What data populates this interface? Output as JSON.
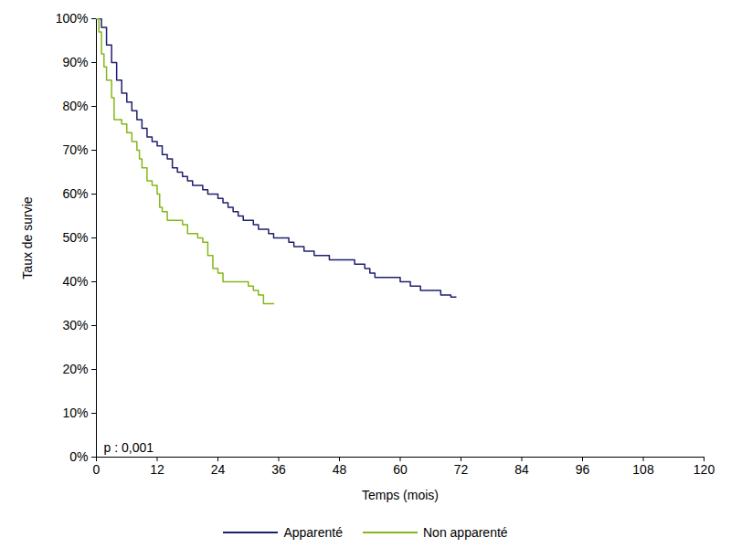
{
  "chart_data": {
    "type": "line",
    "line_style": "step",
    "xlabel": "Temps (mois)",
    "ylabel": "Taux de survie",
    "xlim": [
      0,
      120
    ],
    "xticks": [
      0,
      12,
      24,
      36,
      48,
      60,
      72,
      84,
      96,
      108,
      120
    ],
    "ylim": [
      0,
      100
    ],
    "yticks": [
      {
        "value": 0,
        "label": "0%"
      },
      {
        "value": 10,
        "label": "10%"
      },
      {
        "value": 20,
        "label": "20%"
      },
      {
        "value": 30,
        "label": "30%"
      },
      {
        "value": 40,
        "label": "40%"
      },
      {
        "value": 50,
        "label": "50%"
      },
      {
        "value": 60,
        "label": "60%"
      },
      {
        "value": 70,
        "label": "70%"
      },
      {
        "value": 80,
        "label": "80%"
      },
      {
        "value": 90,
        "label": "90%"
      },
      {
        "value": 100,
        "label": "100%"
      }
    ],
    "grid": false,
    "legend": "bottom",
    "annotations": [
      {
        "text": "p : 0,001"
      }
    ],
    "series": [
      {
        "name": "Apparenté",
        "color": "#1f1f6e",
        "x": [
          0,
          1,
          2,
          3,
          4,
          5,
          6,
          7,
          8,
          9,
          10,
          11,
          12,
          13,
          14,
          15,
          16,
          17,
          18,
          19,
          21,
          22,
          24,
          25,
          26,
          27,
          28,
          29,
          31,
          32,
          34,
          35,
          38,
          39,
          41,
          43,
          46,
          51,
          53,
          54,
          55,
          60,
          62,
          64,
          68,
          70,
          71
        ],
        "values": [
          100,
          98,
          94,
          90,
          86,
          83,
          81,
          79,
          77,
          75,
          73,
          72,
          71,
          69,
          68,
          66,
          65,
          64,
          63,
          62,
          61,
          60,
          59,
          58,
          57,
          56,
          55,
          54,
          53,
          52,
          51,
          50,
          49,
          48,
          47,
          46,
          45,
          44,
          43,
          42,
          41,
          40,
          39,
          38,
          37,
          36.5,
          36.5
        ]
      },
      {
        "name": "Non apparenté",
        "color": "#84b818",
        "x": [
          0,
          0.5,
          1,
          1.5,
          2,
          3,
          3.5,
          5,
          6,
          7,
          8,
          8.5,
          9,
          10,
          11,
          12,
          12.5,
          13,
          14,
          17,
          18,
          20,
          21,
          22,
          23,
          24,
          25,
          30,
          31,
          32,
          33,
          35
        ],
        "values": [
          100,
          97,
          92,
          89,
          86,
          82,
          77,
          76,
          74,
          72,
          70,
          68,
          66,
          63,
          62,
          60,
          57,
          56,
          54,
          53,
          51,
          50,
          49,
          46,
          43,
          42,
          40,
          39,
          38,
          37,
          35,
          35
        ]
      }
    ]
  }
}
